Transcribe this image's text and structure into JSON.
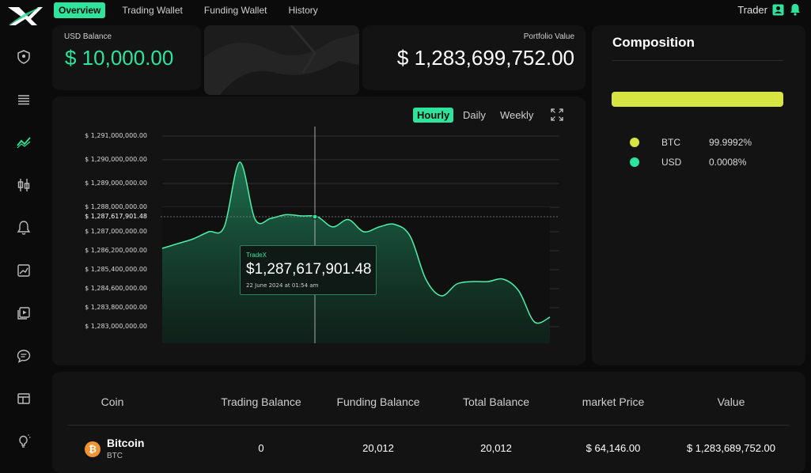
{
  "nav": {
    "tabs": [
      {
        "label": "Overview",
        "active": true
      },
      {
        "label": "Trading Wallet",
        "active": false
      },
      {
        "label": "Funding Wallet",
        "active": false
      },
      {
        "label": "History",
        "active": false
      }
    ],
    "user_label": "Trader"
  },
  "balances": {
    "usd_label": "USD Balance",
    "usd_value": "$ 10,000.00",
    "portfolio_label": "Portfolio Value",
    "portfolio_value": "$ 1,283,699,752.00"
  },
  "chart": {
    "ranges": [
      "Hourly",
      "Daily",
      "Weekly"
    ],
    "active_range": "Hourly",
    "tooltip": {
      "brand": "TradeX",
      "value": "$1,287,617,901.48",
      "date": "22 June 2024 at 01:54 am"
    }
  },
  "chart_data": {
    "type": "area",
    "yticks": [
      "$ 1,291,000,000.00",
      "$ 1,290,000,000.00",
      "$ 1,289,000,000.00",
      "$ 1,288,000,000.00",
      "$ 1,287,617,901.48",
      "$ 1,287,000,000.00",
      "$ 1,286,200,000.00",
      "$ 1,285,400,000.00",
      "$ 1,284,600,000.00",
      "$ 1,283,800,000.00",
      "$ 1,283,000,000.00"
    ],
    "ylim": [
      1283000000,
      1291000000
    ],
    "series": [
      {
        "values": [
          1286300000,
          1286500000,
          1286700000,
          1287000000,
          1287200000,
          1289900000,
          1287500000,
          1287550000,
          1287700000,
          1287650000,
          1287620000,
          1287200000,
          1287500000,
          1287000000,
          1287200000,
          1287300000,
          1286800000,
          1285000000,
          1284300000,
          1284800000,
          1284900000,
          1284900000,
          1285000000,
          1284500000,
          1283200000,
          1283400000
        ]
      }
    ],
    "crosshair_value": 1287617901.48,
    "grid": true,
    "color": "#2ee39c"
  },
  "composition": {
    "title": "Composition",
    "items": [
      {
        "name": "BTC",
        "pct": "99.9992%",
        "color": "#d6e542"
      },
      {
        "name": "USD",
        "pct": "0.0008%",
        "color": "#2ee39c"
      }
    ]
  },
  "table": {
    "headers": [
      "Coin",
      "Trading Balance",
      "Funding Balance",
      "Total Balance",
      "market Price",
      "Value"
    ],
    "rows": [
      {
        "coin_name": "Bitcoin",
        "coin_symbol": "BTC",
        "icon": "bitcoin-icon",
        "trading_balance": "0",
        "funding_balance": "20,012",
        "total_balance": "20,012",
        "market_price": "$ 64,146.00",
        "value": "$ 1,283,689,752.00"
      }
    ]
  }
}
